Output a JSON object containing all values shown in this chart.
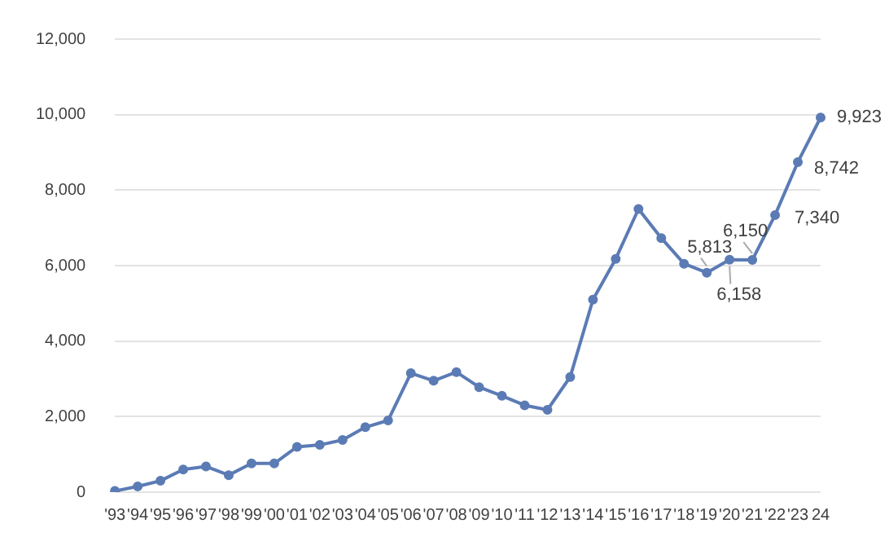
{
  "chart_data": {
    "type": "line",
    "categories": [
      "'93",
      "'94",
      "'95",
      "'96",
      "'97",
      "'98",
      "'99",
      "'00",
      "'01",
      "'02",
      "'03",
      "'04",
      "'05",
      "'06",
      "'07",
      "'08",
      "'09",
      "'10",
      "'11",
      "'12",
      "'13",
      "'14",
      "'15",
      "'16",
      "'17",
      "'18",
      "'19",
      "'20",
      "'21",
      "'22",
      "'23",
      "24"
    ],
    "series": [
      {
        "color": "#5b7bb5",
        "values": [
          30,
          150,
          300,
          600,
          680,
          450,
          760,
          760,
          1200,
          1250,
          1380,
          1720,
          1900,
          3150,
          2950,
          3180,
          2780,
          2550,
          2300,
          2180,
          3050,
          5100,
          6180,
          7500,
          6730,
          6050,
          5813,
          6158,
          6150,
          7340,
          8742,
          9923
        ],
        "value_labels": [
          null,
          null,
          null,
          null,
          null,
          null,
          null,
          null,
          null,
          null,
          null,
          null,
          null,
          null,
          null,
          null,
          null,
          null,
          null,
          null,
          null,
          null,
          null,
          null,
          null,
          null,
          "5,813",
          "6,158",
          "6,150",
          "7,340",
          "8,742",
          "9,923"
        ]
      }
    ],
    "ylim": [
      0,
      12000
    ],
    "yticks": [
      {
        "value": 0,
        "label": "0"
      },
      {
        "value": 2000,
        "label": "2,000"
      },
      {
        "value": 4000,
        "label": "4,000"
      },
      {
        "value": 6000,
        "label": "6,000"
      },
      {
        "value": 8000,
        "label": "8,000"
      },
      {
        "value": 10000,
        "label": "10,000"
      },
      {
        "value": 12000,
        "label": "12,000"
      }
    ],
    "grid": "y",
    "legend": false,
    "marker": "circle",
    "line_style": "solid"
  }
}
